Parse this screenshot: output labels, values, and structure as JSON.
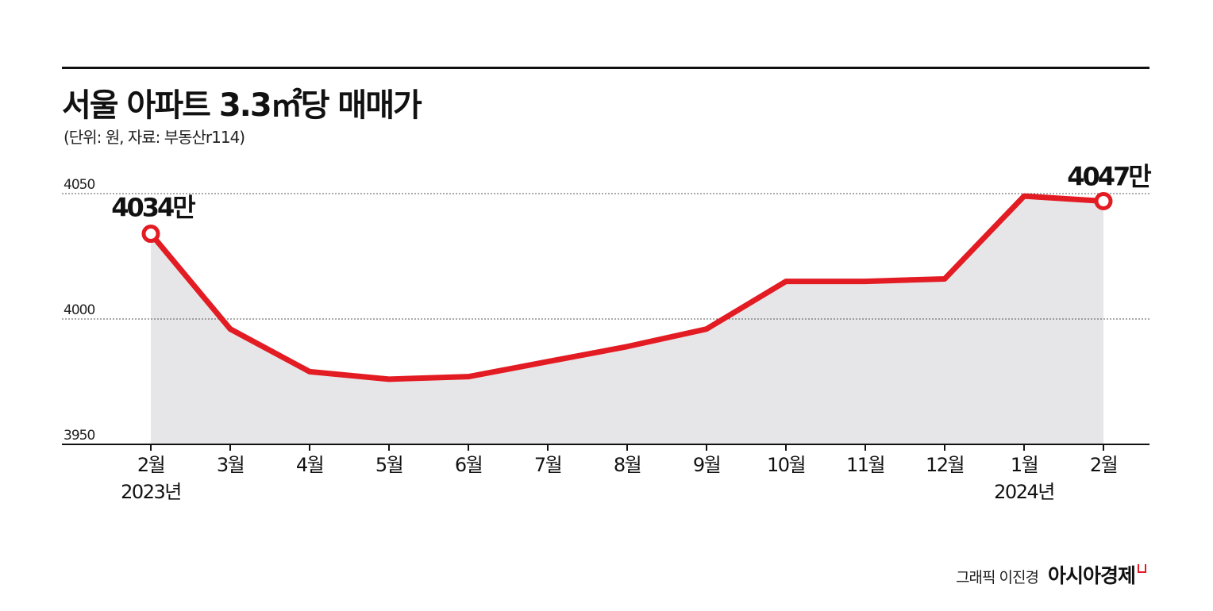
{
  "title": "서울 아파트 3.3㎡당 매매가",
  "subtitle": "(단위: 원, 자료: 부동산r114)",
  "credit": {
    "graphic": "그래픽 이진경",
    "brand": "아시아경제"
  },
  "colors": {
    "line": "#e31b23",
    "area": "#e6e6e8",
    "axis": "#111111",
    "grid": "#555555"
  },
  "chart_data": {
    "type": "area",
    "categories": [
      "2월",
      "3월",
      "4월",
      "5월",
      "6월",
      "7월",
      "8월",
      "9월",
      "10월",
      "11월",
      "12월",
      "1월",
      "2월"
    ],
    "year_labels": [
      {
        "index": 0,
        "text": "2023년"
      },
      {
        "index": 11,
        "text": "2024년"
      }
    ],
    "series": [
      {
        "values": [
          4034,
          3996,
          3979,
          3976,
          3977,
          3983,
          3989,
          3996,
          4015,
          4015,
          4016,
          4049,
          4047
        ]
      }
    ],
    "yticks": [
      3950,
      4000,
      4050
    ],
    "ylim": [
      3950,
      4050
    ],
    "grid": true,
    "annotations": [
      {
        "index": 0,
        "text": "4034만"
      },
      {
        "index": 12,
        "text": "4047만"
      }
    ]
  }
}
